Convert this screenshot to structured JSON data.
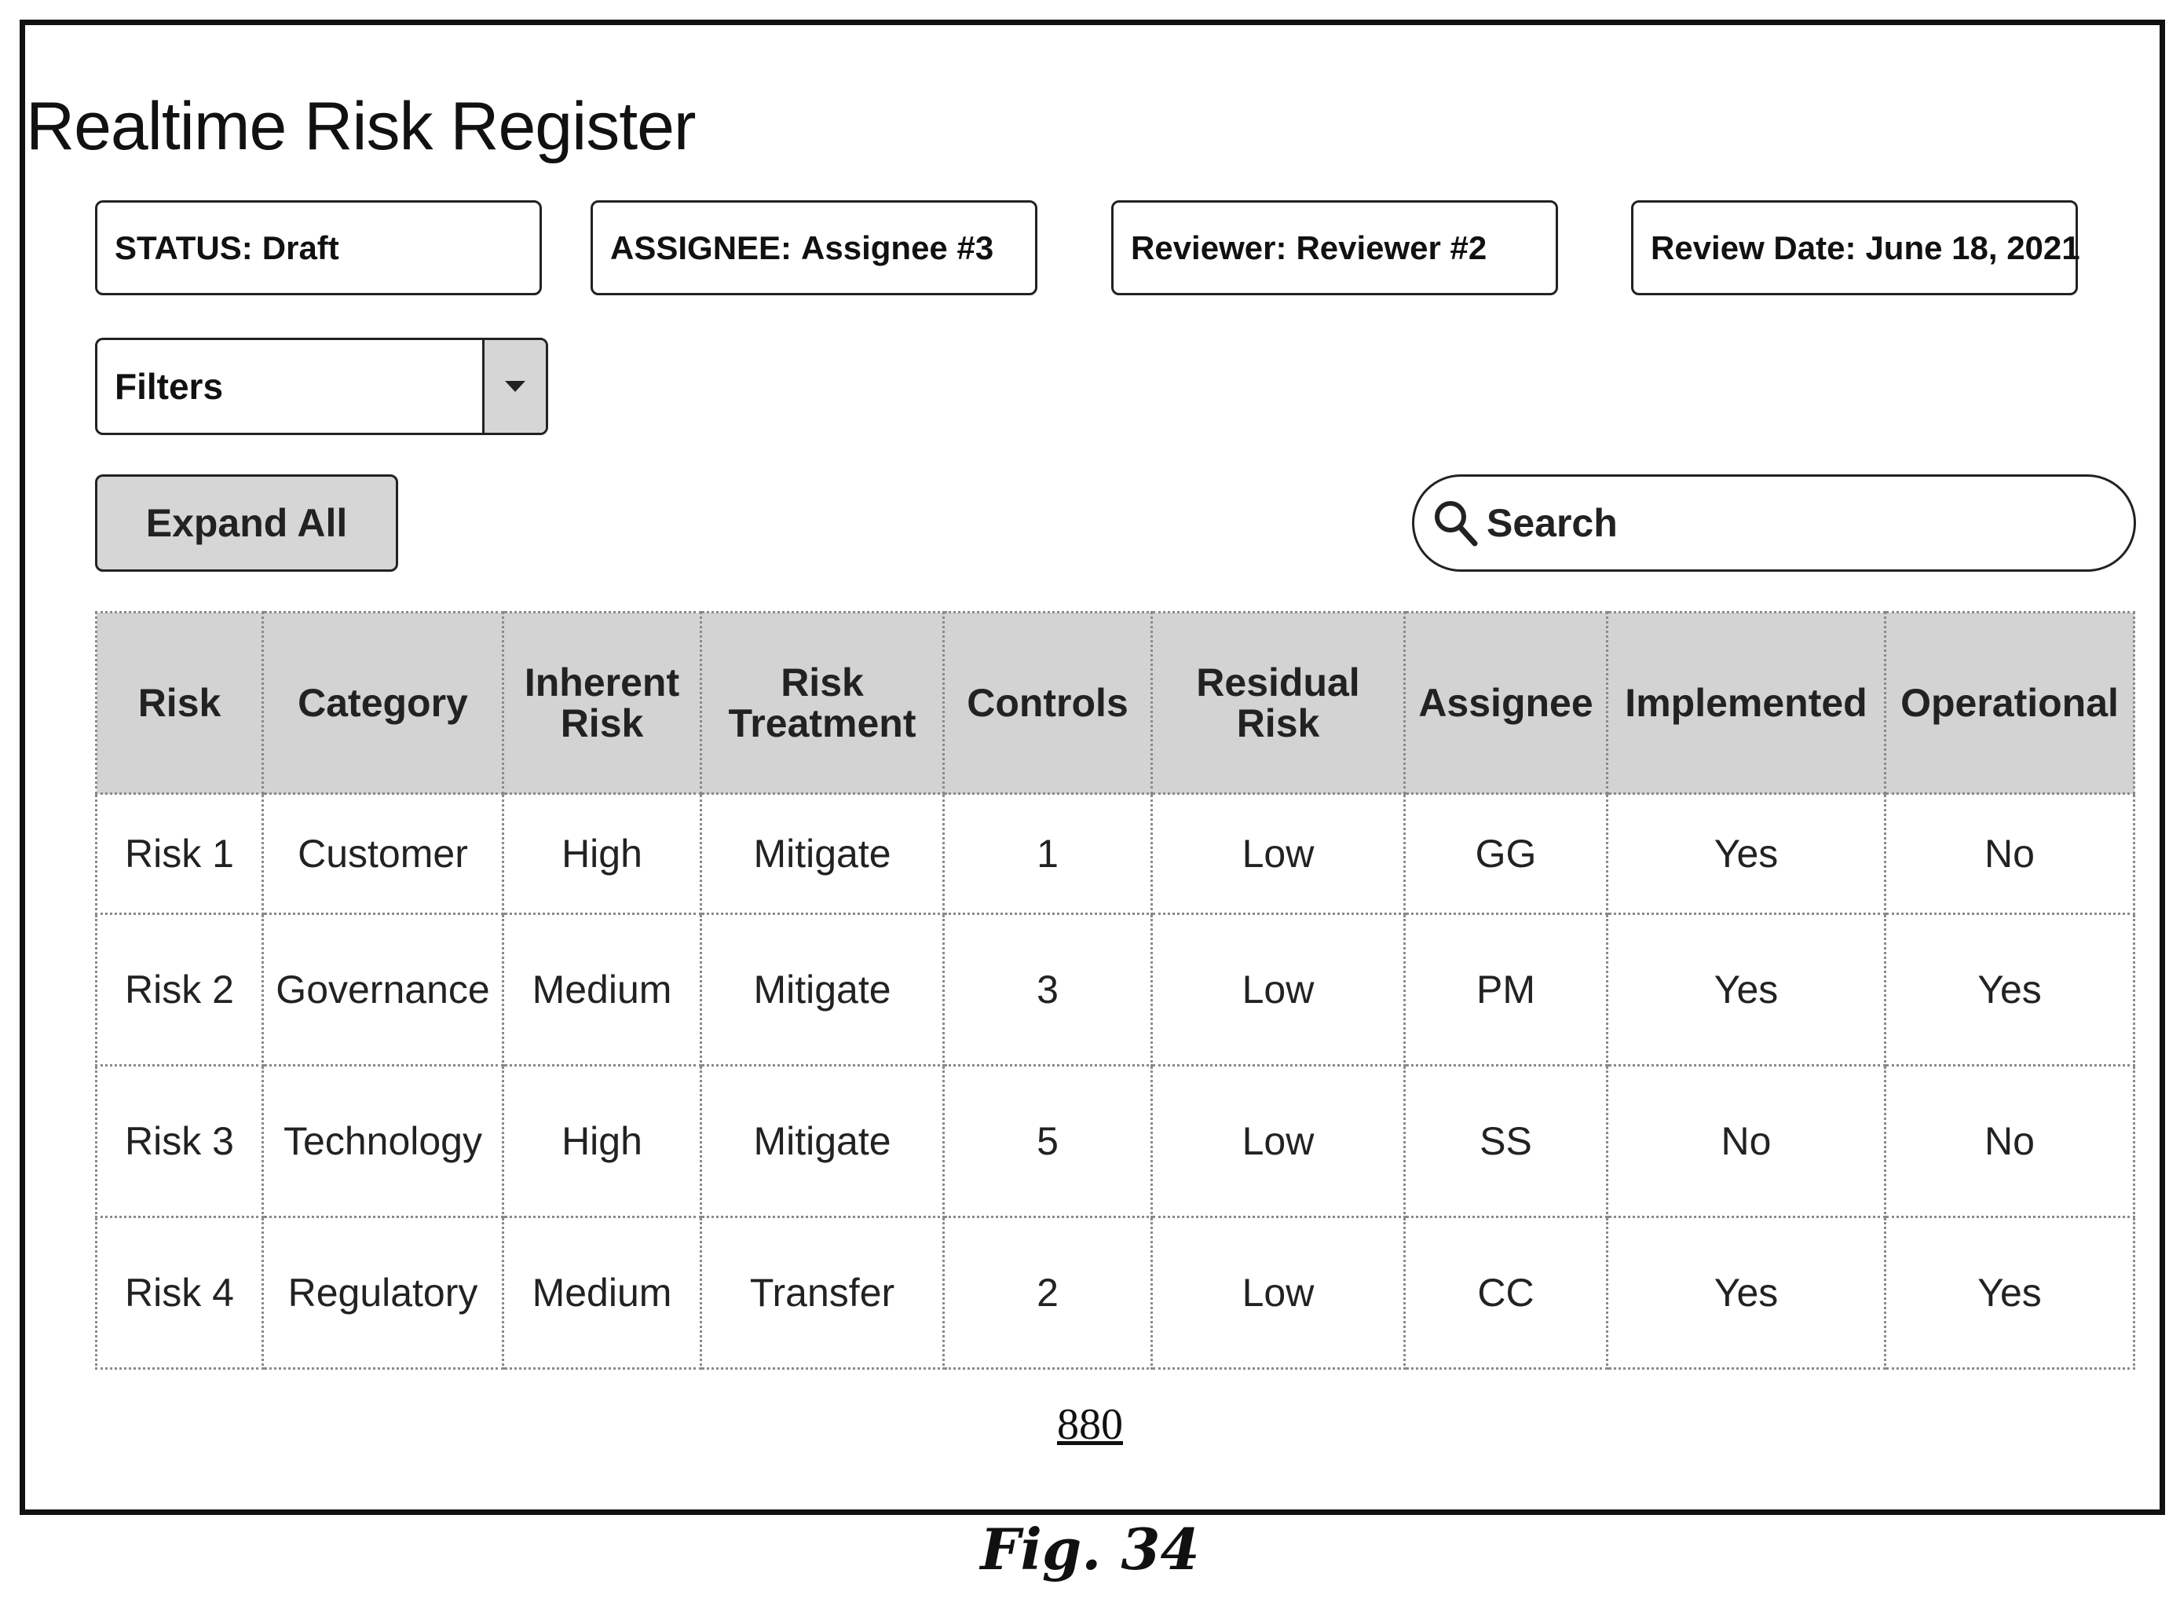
{
  "page": {
    "title": "Realtime Risk Register"
  },
  "info_boxes": [
    {
      "label": "STATUS:",
      "value": "Draft"
    },
    {
      "label": "ASSIGNEE:",
      "value": "Assignee #3"
    },
    {
      "label": "Reviewer:",
      "value": "Reviewer #2"
    },
    {
      "label": "Review Date:",
      "value": "June 18, 2021"
    }
  ],
  "filters": {
    "label": "Filters",
    "arrow_icon": "triangle-down-icon"
  },
  "toolbar": {
    "expand_all_label": "Expand All"
  },
  "search": {
    "placeholder": "Search",
    "value": "",
    "icon": "magnifier-icon"
  },
  "table": {
    "headers": [
      "Risk",
      "Category",
      "Inherent Risk",
      "Risk Treatment",
      "Controls",
      "Residual Risk",
      "Assignee",
      "Implemented",
      "Operational"
    ],
    "rows": [
      [
        "Risk 1",
        "Customer",
        "High",
        "Mitigate",
        "1",
        "Low",
        "GG",
        "Yes",
        "No"
      ],
      [
        "Risk 2",
        "Governance",
        "Medium",
        "Mitigate",
        "3",
        "Low",
        "PM",
        "Yes",
        "Yes"
      ],
      [
        "Risk 3",
        "Technology",
        "High",
        "Mitigate",
        "5",
        "Low",
        "SS",
        "No",
        "No"
      ],
      [
        "Risk 4",
        "Regulatory",
        "Medium",
        "Transfer",
        "2",
        "Low",
        "CC",
        "Yes",
        "Yes"
      ]
    ]
  },
  "reference_number": "880",
  "figure_caption": "Fig. 34",
  "colors": {
    "header_bg": "#d3d3d3",
    "button_bg": "#d6d6d6",
    "border": "#222222"
  }
}
